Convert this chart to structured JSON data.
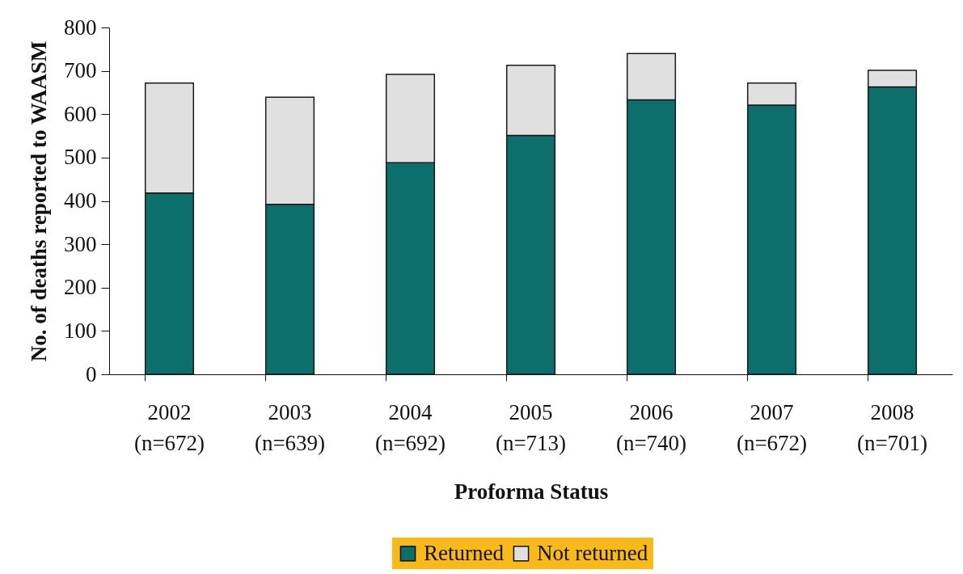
{
  "chart_data": {
    "type": "bar",
    "stacked": true,
    "xlabel": "Proforma Status",
    "ylabel": "No. of deaths reported to WAASM",
    "categories": [
      "2002\n(n=672)",
      "2003\n(n=639)",
      "2004\n(n=692)",
      "2005\n(n=713)",
      "2006\n(n=740)",
      "2007\n(n=672)",
      "2008\n(n=701)"
    ],
    "series": [
      {
        "name": "Returned",
        "color": "#0d6f6b",
        "values": [
          418,
          392,
          488,
          551,
          633,
          621,
          663
        ]
      },
      {
        "name": "Not returned",
        "color": "#e0e0e0",
        "values": [
          254,
          247,
          204,
          162,
          107,
          51,
          38
        ]
      }
    ],
    "ylim": [
      0,
      800
    ],
    "yticks": [
      0,
      100,
      200,
      300,
      400,
      500,
      600,
      700,
      800
    ],
    "grid": false,
    "legend": "bottom"
  }
}
